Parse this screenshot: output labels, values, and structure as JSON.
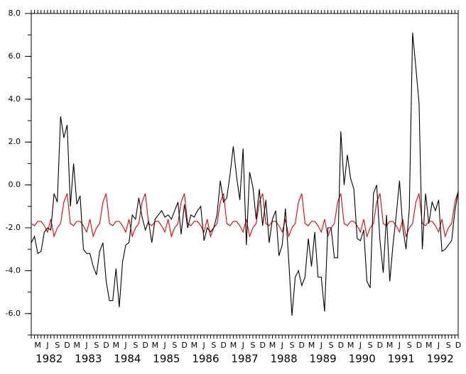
{
  "chart_data": {
    "type": "line",
    "categories": [
      null,
      null,
      "M",
      null,
      null,
      "J",
      null,
      null,
      "S",
      null,
      null,
      "D",
      null,
      null,
      "M",
      null,
      null,
      "J",
      null,
      null,
      "S",
      null,
      null,
      "D",
      null,
      null,
      "M",
      null,
      null,
      "J",
      null,
      null,
      "S",
      null,
      null,
      "D",
      null,
      null,
      "M",
      null,
      null,
      "J",
      null,
      null,
      "S",
      null,
      null,
      "D",
      null,
      null,
      "M",
      null,
      null,
      "J",
      null,
      null,
      "S",
      null,
      null,
      "D",
      null,
      null,
      "M",
      null,
      null,
      "J",
      null,
      null,
      "S",
      null,
      null,
      "D",
      null,
      null,
      "M",
      null,
      null,
      "J",
      null,
      null,
      "S",
      null,
      null,
      "D",
      null,
      null,
      "M",
      null,
      null,
      "J",
      null,
      null,
      "S",
      null,
      null,
      "D",
      null,
      null,
      "M",
      null,
      null,
      "J",
      null,
      null,
      "S",
      null,
      null,
      "D",
      null,
      null,
      "M",
      null,
      null,
      "J",
      null,
      null,
      "S",
      null,
      null,
      "D",
      null,
      null,
      "M",
      null,
      null,
      "J",
      null,
      null,
      "S",
      null,
      null,
      "D"
    ],
    "years": [
      "1982",
      "1983",
      "1984",
      "1985",
      "1986",
      "1987",
      "1988",
      "1989",
      "1990",
      "1991",
      "1992"
    ],
    "series": [
      {
        "color": "#000000",
        "values": [
          -2.7,
          -2.4,
          -3.2,
          -3.1,
          -2.2,
          -2.0,
          -2.1,
          -0.4,
          -0.8,
          3.2,
          2.2,
          2.8,
          -1.0,
          1.0,
          -0.9,
          -0.5,
          -3.0,
          -3.2,
          -3.2,
          -3.8,
          -4.2,
          -3.1,
          -2.7,
          -4.5,
          -5.4,
          -5.4,
          -3.9,
          -5.7,
          -3.6,
          -2.8,
          -2.7,
          -1.4,
          -1.6,
          -0.6,
          -1.5,
          -2.1,
          -1.7,
          -2.7,
          -1.6,
          -1.4,
          -1.2,
          -1.5,
          -1.4,
          -1.6,
          -1.2,
          -0.8,
          -2.3,
          -0.9,
          -2.0,
          -1.4,
          -1.5,
          -1.2,
          -1.0,
          -2.6,
          -2.0,
          -2.2,
          -2.0,
          -1.4,
          0.2,
          -0.8,
          -0.6,
          0.5,
          1.8,
          0.4,
          -0.7,
          1.7,
          -2.8,
          0.6,
          -0.1,
          -1.6,
          -0.2,
          -1.9,
          -0.7,
          -2.7,
          -1.6,
          -1.2,
          -3.3,
          -2.8,
          -1.1,
          -3.5,
          -6.1,
          -4.3,
          -4.0,
          -4.7,
          -4.3,
          -2.5,
          -3.8,
          -2.2,
          -4.3,
          -4.3,
          -5.9,
          -2.0,
          -2.0,
          -3.4,
          -3.4,
          2.5,
          0.0,
          1.4,
          0.3,
          -0.2,
          -2.5,
          -2.6,
          -2.1,
          -4.5,
          -4.8,
          -0.4,
          0.0,
          -2.6,
          -4.1,
          -1.4,
          -4.5,
          -2.8,
          -1.4,
          0.2,
          -2.0,
          -3.0,
          -1.1,
          7.1,
          5.5,
          3.8,
          -3.0,
          -0.4,
          -1.8,
          -0.8,
          -1.2,
          -0.7,
          -3.1,
          -3.0,
          -2.8,
          -2.6,
          -1.2,
          -0.3
        ]
      },
      {
        "color": "#e00000",
        "values": [
          -1.8,
          -1.9,
          -1.7,
          -1.7,
          -1.9,
          -2.2,
          -1.6,
          -2.4,
          -2.0,
          -1.8,
          -0.8,
          -0.4,
          -1.8,
          -1.9,
          -1.7,
          -1.7,
          -1.9,
          -2.2,
          -1.6,
          -2.4,
          -2.0,
          -1.8,
          -0.8,
          -0.4,
          -1.8,
          -1.9,
          -1.7,
          -1.7,
          -1.9,
          -2.2,
          -1.6,
          -2.4,
          -2.0,
          -1.8,
          -0.8,
          -0.4,
          -1.8,
          -1.9,
          -1.7,
          -1.7,
          -1.9,
          -2.2,
          -1.6,
          -2.4,
          -2.0,
          -1.8,
          -0.8,
          -0.4,
          -1.8,
          -1.9,
          -1.7,
          -1.7,
          -1.9,
          -2.2,
          -1.6,
          -2.4,
          -2.0,
          -1.8,
          -0.8,
          -0.4,
          -1.8,
          -1.9,
          -1.7,
          -1.7,
          -1.9,
          -2.2,
          -1.6,
          -2.4,
          -2.0,
          -1.8,
          -0.8,
          -0.4,
          -1.8,
          -1.9,
          -1.7,
          -1.7,
          -1.9,
          -2.2,
          -1.6,
          -2.4,
          -2.0,
          -1.8,
          -0.8,
          -0.4,
          -1.8,
          -1.9,
          -1.7,
          -1.7,
          -1.9,
          -2.2,
          -1.6,
          -2.4,
          -2.0,
          -1.8,
          -0.8,
          -0.4,
          -1.8,
          -1.9,
          -1.7,
          -1.7,
          -1.9,
          -2.2,
          -1.6,
          -2.4,
          -2.0,
          -1.8,
          -0.8,
          -0.4,
          -1.8,
          -1.9,
          -1.7,
          -1.7,
          -1.9,
          -2.2,
          -1.6,
          -2.4,
          -2.0,
          -1.8,
          -0.8,
          -0.4,
          -1.8,
          -1.9,
          -1.7,
          -1.7,
          -1.9,
          -2.2,
          -1.6,
          -2.4,
          -2.0,
          -1.8,
          -0.8,
          -0.3
        ]
      }
    ],
    "ylim": [
      -7,
      8
    ],
    "yticks": [
      {
        "value": 8,
        "label": "8.0"
      },
      {
        "value": 6,
        "label": "6.0"
      },
      {
        "value": 4,
        "label": "4.0"
      },
      {
        "value": 2,
        "label": "2.0"
      },
      {
        "value": 0,
        "label": "0.0"
      },
      {
        "value": -2,
        "label": "-2.0"
      },
      {
        "value": -4,
        "label": "-4.0"
      },
      {
        "value": -6,
        "label": "-6.0"
      }
    ]
  }
}
